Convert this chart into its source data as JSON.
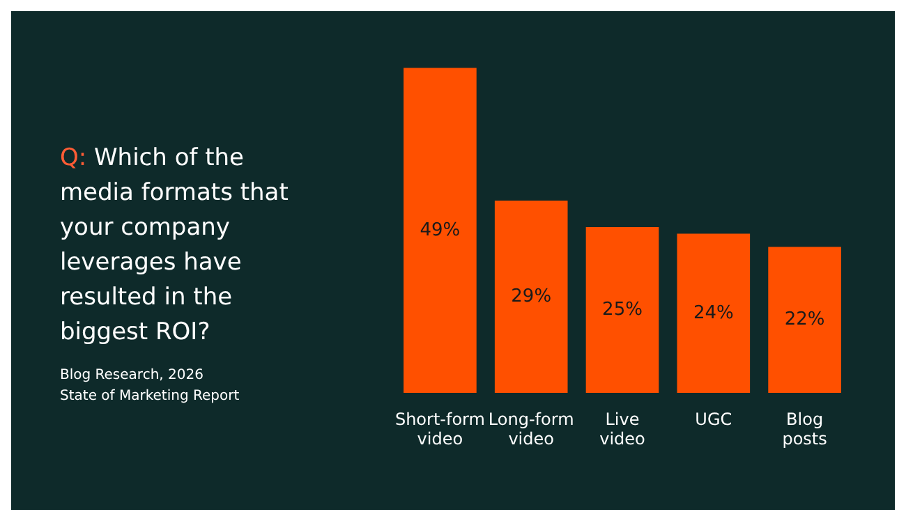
{
  "chart_data": {
    "type": "bar",
    "title": "Q: Which of the media formats that your company leverages have resulted in the biggest ROI?",
    "categories": [
      "Short-form video",
      "Long-form video",
      "Live video",
      "UGC",
      "Blog posts"
    ],
    "values": [
      49,
      29,
      25,
      24,
      22
    ],
    "value_labels": [
      "49%",
      "29%",
      "25%",
      "24%",
      "22%"
    ],
    "color": "#ff5000",
    "annotations": [
      "Blog Research, 2026",
      "State of Marketing Report"
    ]
  }
}
